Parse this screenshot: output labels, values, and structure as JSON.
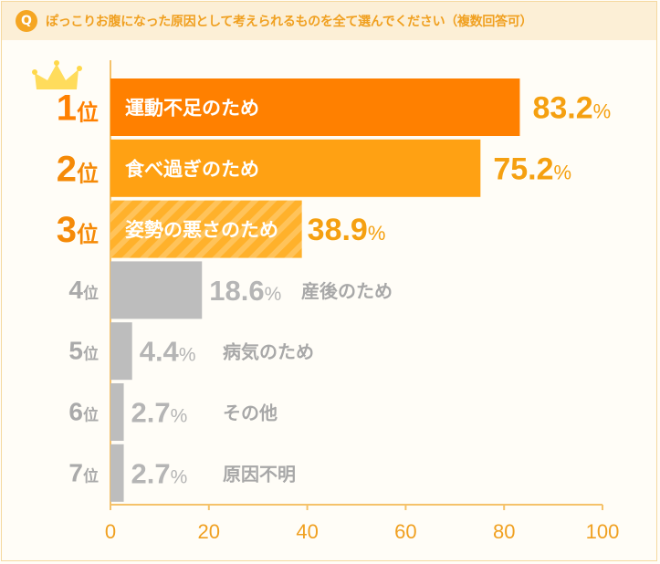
{
  "header": {
    "q_icon": "Q",
    "title": "ぽっこりお腹になった原因として考えられるものを全て選んでください（複数回答可）"
  },
  "colors": {
    "rank1": "#ff8000",
    "rank2": "#ffa113",
    "rank3": "#ffb733",
    "other": "#bdbdbd",
    "accent": "#f5a623"
  },
  "chart_data": {
    "type": "bar",
    "orientation": "horizontal",
    "title": "ぽっこりお腹になった原因として考えられるものを全て選んでください（複数回答可）",
    "xlim": [
      0,
      100
    ],
    "xticks": [
      "0",
      "20",
      "40",
      "60",
      "80",
      "100"
    ],
    "items": [
      {
        "rank": "1",
        "rank_suffix": "位",
        "label": "運動不足のため",
        "value": 83.2,
        "value_label": "83.2",
        "unit": "%"
      },
      {
        "rank": "2",
        "rank_suffix": "位",
        "label": "食べ過ぎのため",
        "value": 75.2,
        "value_label": "75.2",
        "unit": "%"
      },
      {
        "rank": "3",
        "rank_suffix": "位",
        "label": "姿勢の悪さのため",
        "value": 38.9,
        "value_label": "38.9",
        "unit": "%"
      },
      {
        "rank": "4",
        "rank_suffix": "位",
        "label": "産後のため",
        "value": 18.6,
        "value_label": "18.6",
        "unit": "%"
      },
      {
        "rank": "5",
        "rank_suffix": "位",
        "label": "病気のため",
        "value": 4.4,
        "value_label": "4.4",
        "unit": "%"
      },
      {
        "rank": "6",
        "rank_suffix": "位",
        "label": "その他",
        "value": 2.7,
        "value_label": "2.7",
        "unit": "%"
      },
      {
        "rank": "7",
        "rank_suffix": "位",
        "label": "原因不明",
        "value": 2.7,
        "value_label": "2.7",
        "unit": "%"
      }
    ]
  }
}
